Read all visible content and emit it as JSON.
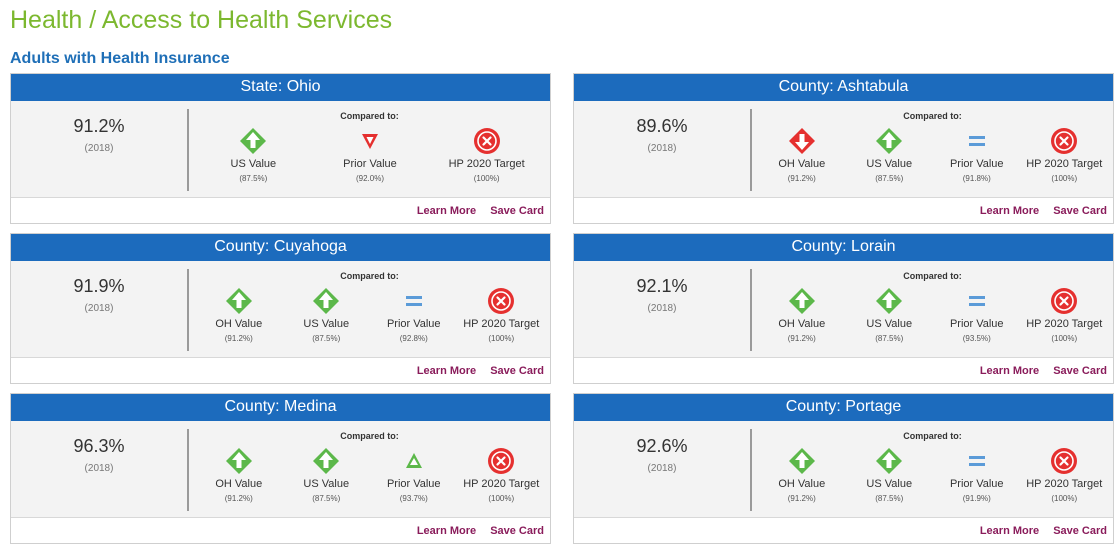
{
  "page": {
    "title": "Health / Access to Health Services",
    "section_title": "Adults with Health Insurance"
  },
  "colors": {
    "title_green": "#7cb82f",
    "section_blue": "#1f6fb7",
    "header_blue": "#1c6bbd",
    "good_green": "#5cb84a",
    "bad_red": "#e5302f",
    "equal_blue": "#5b9bd8",
    "link_purple": "#8a1c5b"
  },
  "common": {
    "compared_to": "Compared to:",
    "learn_more": "Learn More",
    "save_card": "Save Card"
  },
  "cards": [
    {
      "title": "State: Ohio",
      "value": "91.2%",
      "year": "(2018)",
      "comparisons": [
        {
          "icon": "up-green-diamond-icon",
          "label": "US Value",
          "sub": "(87.5%)"
        },
        {
          "icon": "down-red-triangle-icon",
          "label": "Prior Value",
          "sub": "(92.0%)"
        },
        {
          "icon": "red-x-circle-icon",
          "label": "HP 2020 Target",
          "sub": "(100%)"
        }
      ]
    },
    {
      "title": "County: Ashtabula",
      "value": "89.6%",
      "year": "(2018)",
      "comparisons": [
        {
          "icon": "down-red-diamond-icon",
          "label": "OH Value",
          "sub": "(91.2%)"
        },
        {
          "icon": "up-green-diamond-icon",
          "label": "US Value",
          "sub": "(87.5%)"
        },
        {
          "icon": "equal-blue-icon",
          "label": "Prior Value",
          "sub": "(91.8%)"
        },
        {
          "icon": "red-x-circle-icon",
          "label": "HP 2020 Target",
          "sub": "(100%)"
        }
      ]
    },
    {
      "title": "County: Cuyahoga",
      "value": "91.9%",
      "year": "(2018)",
      "comparisons": [
        {
          "icon": "up-green-diamond-icon",
          "label": "OH Value",
          "sub": "(91.2%)"
        },
        {
          "icon": "up-green-diamond-icon",
          "label": "US Value",
          "sub": "(87.5%)"
        },
        {
          "icon": "equal-blue-icon",
          "label": "Prior Value",
          "sub": "(92.8%)"
        },
        {
          "icon": "red-x-circle-icon",
          "label": "HP 2020 Target",
          "sub": "(100%)"
        }
      ]
    },
    {
      "title": "County: Lorain",
      "value": "92.1%",
      "year": "(2018)",
      "comparisons": [
        {
          "icon": "up-green-diamond-icon",
          "label": "OH Value",
          "sub": "(91.2%)"
        },
        {
          "icon": "up-green-diamond-icon",
          "label": "US Value",
          "sub": "(87.5%)"
        },
        {
          "icon": "equal-blue-icon",
          "label": "Prior Value",
          "sub": "(93.5%)"
        },
        {
          "icon": "red-x-circle-icon",
          "label": "HP 2020 Target",
          "sub": "(100%)"
        }
      ]
    },
    {
      "title": "County: Medina",
      "value": "96.3%",
      "year": "(2018)",
      "comparisons": [
        {
          "icon": "up-green-diamond-icon",
          "label": "OH Value",
          "sub": "(91.2%)"
        },
        {
          "icon": "up-green-diamond-icon",
          "label": "US Value",
          "sub": "(87.5%)"
        },
        {
          "icon": "up-green-triangle-icon",
          "label": "Prior Value",
          "sub": "(93.7%)"
        },
        {
          "icon": "red-x-circle-icon",
          "label": "HP 2020 Target",
          "sub": "(100%)"
        }
      ]
    },
    {
      "title": "County: Portage",
      "value": "92.6%",
      "year": "(2018)",
      "comparisons": [
        {
          "icon": "up-green-diamond-icon",
          "label": "OH Value",
          "sub": "(91.2%)"
        },
        {
          "icon": "up-green-diamond-icon",
          "label": "US Value",
          "sub": "(87.5%)"
        },
        {
          "icon": "equal-blue-icon",
          "label": "Prior Value",
          "sub": "(91.9%)"
        },
        {
          "icon": "red-x-circle-icon",
          "label": "HP 2020 Target",
          "sub": "(100%)"
        }
      ]
    }
  ]
}
